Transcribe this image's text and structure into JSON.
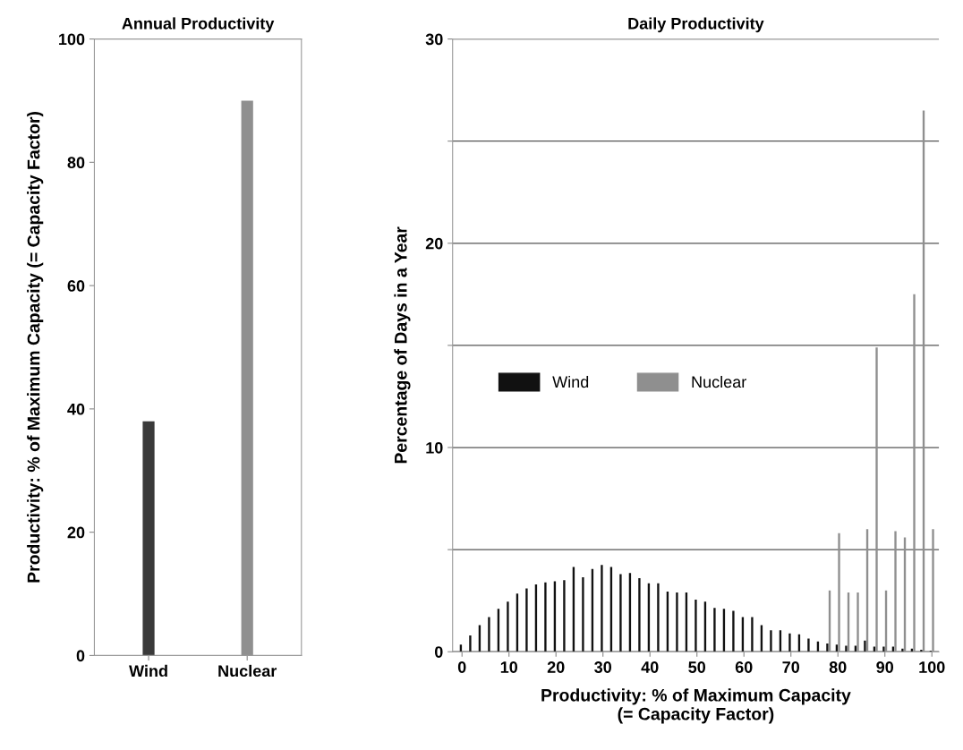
{
  "chart_data": [
    {
      "type": "bar",
      "title": "Annual Productivity",
      "ylabel": "Productivity: % of Maximum Capacity (= Capacity Factor)",
      "categories": [
        "Wind",
        "Nuclear"
      ],
      "values": [
        38,
        90
      ],
      "colors": [
        "#3a3a3a",
        "#8f8f8f"
      ],
      "ylim": [
        0,
        100
      ],
      "yticks": [
        0,
        20,
        40,
        60,
        80,
        100
      ],
      "grid": false,
      "legend": false
    },
    {
      "type": "bar",
      "title": "Daily Productivity",
      "xlabel": "Productivity: % of Maximum Capacity\n(= Capacity Factor)",
      "ylabel": "Percentage of Days in a Year",
      "xlim": [
        -2,
        101.5
      ],
      "xticks": [
        0,
        10,
        20,
        30,
        40,
        50,
        60,
        70,
        80,
        90,
        100
      ],
      "ylim": [
        0,
        30
      ],
      "yticks": [
        0,
        {
          "value": 5,
          "label": null
        },
        10,
        {
          "value": 15,
          "label": null
        },
        20,
        {
          "value": 25,
          "label": null
        },
        30
      ],
      "grid": "y",
      "legend": "center",
      "series": [
        {
          "name": "Wind",
          "color": "#111111",
          "x": [
            0,
            2,
            4,
            6,
            8,
            10,
            12,
            14,
            16,
            18,
            20,
            22,
            24,
            26,
            28,
            30,
            32,
            34,
            36,
            38,
            40,
            42,
            44,
            46,
            48,
            50,
            52,
            54,
            56,
            58,
            60,
            62,
            64,
            66,
            68,
            70,
            72,
            74,
            76,
            78,
            80,
            82,
            84,
            86,
            88,
            90,
            92,
            94,
            96,
            98,
            100
          ],
          "values": [
            0.35,
            0.8,
            1.3,
            1.7,
            2.1,
            2.45,
            2.85,
            3.1,
            3.3,
            3.4,
            3.45,
            3.5,
            4.15,
            3.65,
            4.05,
            4.25,
            4.15,
            3.8,
            3.85,
            3.6,
            3.35,
            3.35,
            2.95,
            2.9,
            2.9,
            2.55,
            2.45,
            2.15,
            2.1,
            2.0,
            1.7,
            1.7,
            1.3,
            1.05,
            1.05,
            0.9,
            0.85,
            0.65,
            0.5,
            0.4,
            0.35,
            0.3,
            0.3,
            0.55,
            0.25,
            0.25,
            0.25,
            0.15,
            0.15,
            0.1,
            0.05
          ]
        },
        {
          "name": "Nuclear",
          "color": "#8f8f8f",
          "x": [
            78,
            80,
            82,
            84,
            86,
            88,
            90,
            92,
            94,
            96,
            98,
            100
          ],
          "values": [
            3.0,
            5.8,
            2.9,
            2.9,
            6.0,
            14.9,
            3.0,
            5.9,
            5.6,
            17.5,
            26.5,
            6.0
          ]
        }
      ]
    }
  ]
}
